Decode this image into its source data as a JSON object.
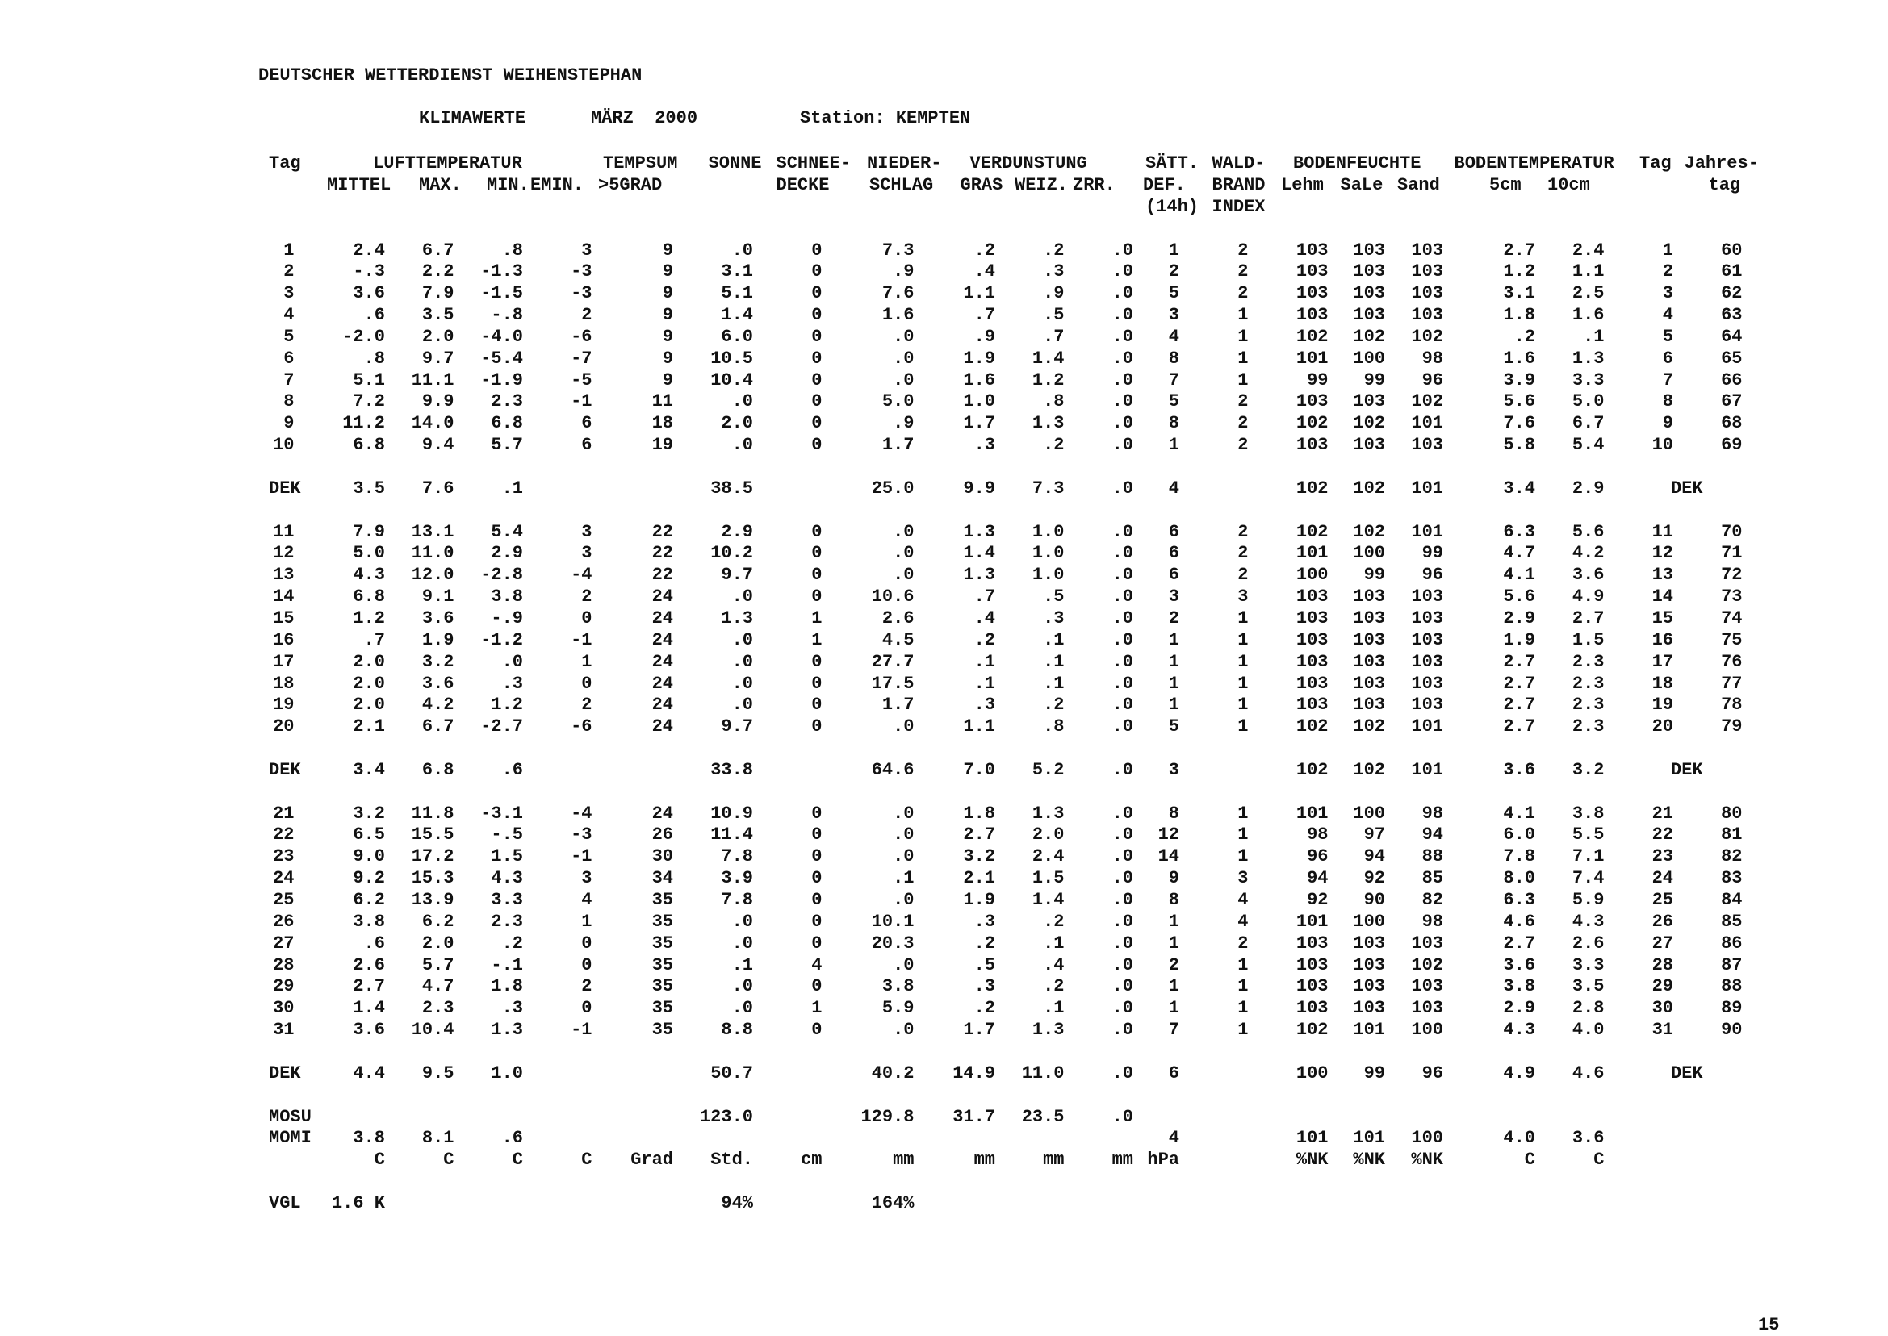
{
  "header": {
    "org": "DEUTSCHER WETTERDIENST WEIHENSTEPHAN",
    "title": "KLIMAWERTE",
    "month": "MÄRZ  2000",
    "station": "Station: KEMPTEN"
  },
  "columns": {
    "line1": [
      "Tag",
      "LUFTTEMPERATUR",
      "TEMPSUM",
      "SONNE",
      "SCHNEE-",
      "NIEDER-",
      "VERDUNSTUNG",
      "SÄTT.",
      "WALD-",
      "BODENFEUCHTE",
      "BODENTEMPERATUR",
      "Tag",
      "Jahres-"
    ],
    "line2": [
      "MITTEL",
      "MAX.",
      "MIN.",
      "EMIN.",
      ">5GRAD",
      "DECKE",
      "SCHLAG",
      "GRAS",
      "WEIZ.",
      "ZRR.",
      "DEF.",
      "BRAND",
      "Lehm",
      "SaLe",
      "Sand",
      "5cm",
      "10cm",
      "tag"
    ],
    "line3": [
      "(14h)",
      "INDEX"
    ]
  },
  "table": {
    "blocks": [
      [
        [
          "1",
          "2.4",
          "6.7",
          ".8",
          "3",
          "9",
          ".0",
          "0",
          "7.3",
          ".2",
          ".2",
          ".0",
          "1",
          "2",
          "103",
          "103",
          "103",
          "2.7",
          "2.4",
          "1",
          "60"
        ],
        [
          "2",
          "-.3",
          "2.2",
          "-1.3",
          "-3",
          "9",
          "3.1",
          "0",
          ".9",
          ".4",
          ".3",
          ".0",
          "2",
          "2",
          "103",
          "103",
          "103",
          "1.2",
          "1.1",
          "2",
          "61"
        ],
        [
          "3",
          "3.6",
          "7.9",
          "-1.5",
          "-3",
          "9",
          "5.1",
          "0",
          "7.6",
          "1.1",
          ".9",
          ".0",
          "5",
          "2",
          "103",
          "103",
          "103",
          "3.1",
          "2.5",
          "3",
          "62"
        ],
        [
          "4",
          ".6",
          "3.5",
          "-.8",
          "2",
          "9",
          "1.4",
          "0",
          "1.6",
          ".7",
          ".5",
          ".0",
          "3",
          "1",
          "103",
          "103",
          "103",
          "1.8",
          "1.6",
          "4",
          "63"
        ],
        [
          "5",
          "-2.0",
          "2.0",
          "-4.0",
          "-6",
          "9",
          "6.0",
          "0",
          ".0",
          ".9",
          ".7",
          ".0",
          "4",
          "1",
          "102",
          "102",
          "102",
          ".2",
          ".1",
          "5",
          "64"
        ],
        [
          "6",
          ".8",
          "9.7",
          "-5.4",
          "-7",
          "9",
          "10.5",
          "0",
          ".0",
          "1.9",
          "1.4",
          ".0",
          "8",
          "1",
          "101",
          "100",
          "98",
          "1.6",
          "1.3",
          "6",
          "65"
        ],
        [
          "7",
          "5.1",
          "11.1",
          "-1.9",
          "-5",
          "9",
          "10.4",
          "0",
          ".0",
          "1.6",
          "1.2",
          ".0",
          "7",
          "1",
          "99",
          "99",
          "96",
          "3.9",
          "3.3",
          "7",
          "66"
        ],
        [
          "8",
          "7.2",
          "9.9",
          "2.3",
          "-1",
          "11",
          ".0",
          "0",
          "5.0",
          "1.0",
          ".8",
          ".0",
          "5",
          "2",
          "103",
          "103",
          "102",
          "5.6",
          "5.0",
          "8",
          "67"
        ],
        [
          "9",
          "11.2",
          "14.0",
          "6.8",
          "6",
          "18",
          "2.0",
          "0",
          ".9",
          "1.7",
          "1.3",
          ".0",
          "8",
          "2",
          "102",
          "102",
          "101",
          "7.6",
          "6.7",
          "9",
          "68"
        ],
        [
          "10",
          "6.8",
          "9.4",
          "5.7",
          "6",
          "19",
          ".0",
          "0",
          "1.7",
          ".3",
          ".2",
          ".0",
          "1",
          "2",
          "103",
          "103",
          "103",
          "5.8",
          "5.4",
          "10",
          "69"
        ]
      ],
      [
        [
          "DEK",
          "3.5",
          "7.6",
          ".1",
          null,
          null,
          "38.5",
          null,
          "25.0",
          "9.9",
          "7.3",
          ".0",
          "4",
          null,
          "102",
          "102",
          "101",
          "3.4",
          "2.9",
          "DEK"
        ]
      ],
      [
        [
          "11",
          "7.9",
          "13.1",
          "5.4",
          "3",
          "22",
          "2.9",
          "0",
          ".0",
          "1.3",
          "1.0",
          ".0",
          "6",
          "2",
          "102",
          "102",
          "101",
          "6.3",
          "5.6",
          "11",
          "70"
        ],
        [
          "12",
          "5.0",
          "11.0",
          "2.9",
          "3",
          "22",
          "10.2",
          "0",
          ".0",
          "1.4",
          "1.0",
          ".0",
          "6",
          "2",
          "101",
          "100",
          "99",
          "4.7",
          "4.2",
          "12",
          "71"
        ],
        [
          "13",
          "4.3",
          "12.0",
          "-2.8",
          "-4",
          "22",
          "9.7",
          "0",
          ".0",
          "1.3",
          "1.0",
          ".0",
          "6",
          "2",
          "100",
          "99",
          "96",
          "4.1",
          "3.6",
          "13",
          "72"
        ],
        [
          "14",
          "6.8",
          "9.1",
          "3.8",
          "2",
          "24",
          ".0",
          "0",
          "10.6",
          ".7",
          ".5",
          ".0",
          "3",
          "3",
          "103",
          "103",
          "103",
          "5.6",
          "4.9",
          "14",
          "73"
        ],
        [
          "15",
          "1.2",
          "3.6",
          "-.9",
          "0",
          "24",
          "1.3",
          "1",
          "2.6",
          ".4",
          ".3",
          ".0",
          "2",
          "1",
          "103",
          "103",
          "103",
          "2.9",
          "2.7",
          "15",
          "74"
        ],
        [
          "16",
          ".7",
          "1.9",
          "-1.2",
          "-1",
          "24",
          ".0",
          "1",
          "4.5",
          ".2",
          ".1",
          ".0",
          "1",
          "1",
          "103",
          "103",
          "103",
          "1.9",
          "1.5",
          "16",
          "75"
        ],
        [
          "17",
          "2.0",
          "3.2",
          ".0",
          "1",
          "24",
          ".0",
          "0",
          "27.7",
          ".1",
          ".1",
          ".0",
          "1",
          "1",
          "103",
          "103",
          "103",
          "2.7",
          "2.3",
          "17",
          "76"
        ],
        [
          "18",
          "2.0",
          "3.6",
          ".3",
          "0",
          "24",
          ".0",
          "0",
          "17.5",
          ".1",
          ".1",
          ".0",
          "1",
          "1",
          "103",
          "103",
          "103",
          "2.7",
          "2.3",
          "18",
          "77"
        ],
        [
          "19",
          "2.0",
          "4.2",
          "1.2",
          "2",
          "24",
          ".0",
          "0",
          "1.7",
          ".3",
          ".2",
          ".0",
          "1",
          "1",
          "103",
          "103",
          "103",
          "2.7",
          "2.3",
          "19",
          "78"
        ],
        [
          "20",
          "2.1",
          "6.7",
          "-2.7",
          "-6",
          "24",
          "9.7",
          "0",
          ".0",
          "1.1",
          ".8",
          ".0",
          "5",
          "1",
          "102",
          "102",
          "101",
          "2.7",
          "2.3",
          "20",
          "79"
        ]
      ],
      [
        [
          "DEK",
          "3.4",
          "6.8",
          ".6",
          null,
          null,
          "33.8",
          null,
          "64.6",
          "7.0",
          "5.2",
          ".0",
          "3",
          null,
          "102",
          "102",
          "101",
          "3.6",
          "3.2",
          "DEK"
        ]
      ],
      [
        [
          "21",
          "3.2",
          "11.8",
          "-3.1",
          "-4",
          "24",
          "10.9",
          "0",
          ".0",
          "1.8",
          "1.3",
          ".0",
          "8",
          "1",
          "101",
          "100",
          "98",
          "4.1",
          "3.8",
          "21",
          "80"
        ],
        [
          "22",
          "6.5",
          "15.5",
          "-.5",
          "-3",
          "26",
          "11.4",
          "0",
          ".0",
          "2.7",
          "2.0",
          ".0",
          "12",
          "1",
          "98",
          "97",
          "94",
          "6.0",
          "5.5",
          "22",
          "81"
        ],
        [
          "23",
          "9.0",
          "17.2",
          "1.5",
          "-1",
          "30",
          "7.8",
          "0",
          ".0",
          "3.2",
          "2.4",
          ".0",
          "14",
          "1",
          "96",
          "94",
          "88",
          "7.8",
          "7.1",
          "23",
          "82"
        ],
        [
          "24",
          "9.2",
          "15.3",
          "4.3",
          "3",
          "34",
          "3.9",
          "0",
          ".1",
          "2.1",
          "1.5",
          ".0",
          "9",
          "3",
          "94",
          "92",
          "85",
          "8.0",
          "7.4",
          "24",
          "83"
        ],
        [
          "25",
          "6.2",
          "13.9",
          "3.3",
          "4",
          "35",
          "7.8",
          "0",
          ".0",
          "1.9",
          "1.4",
          ".0",
          "8",
          "4",
          "92",
          "90",
          "82",
          "6.3",
          "5.9",
          "25",
          "84"
        ],
        [
          "26",
          "3.8",
          "6.2",
          "2.3",
          "1",
          "35",
          ".0",
          "0",
          "10.1",
          ".3",
          ".2",
          ".0",
          "1",
          "4",
          "101",
          "100",
          "98",
          "4.6",
          "4.3",
          "26",
          "85"
        ],
        [
          "27",
          ".6",
          "2.0",
          ".2",
          "0",
          "35",
          ".0",
          "0",
          "20.3",
          ".2",
          ".1",
          ".0",
          "1",
          "2",
          "103",
          "103",
          "103",
          "2.7",
          "2.6",
          "27",
          "86"
        ],
        [
          "28",
          "2.6",
          "5.7",
          "-.1",
          "0",
          "35",
          ".1",
          "4",
          ".0",
          ".5",
          ".4",
          ".0",
          "2",
          "1",
          "103",
          "103",
          "102",
          "3.6",
          "3.3",
          "28",
          "87"
        ],
        [
          "29",
          "2.7",
          "4.7",
          "1.8",
          "2",
          "35",
          ".0",
          "0",
          "3.8",
          ".3",
          ".2",
          ".0",
          "1",
          "1",
          "103",
          "103",
          "103",
          "3.8",
          "3.5",
          "29",
          "88"
        ],
        [
          "30",
          "1.4",
          "2.3",
          ".3",
          "0",
          "35",
          ".0",
          "1",
          "5.9",
          ".2",
          ".1",
          ".0",
          "1",
          "1",
          "103",
          "103",
          "103",
          "2.9",
          "2.8",
          "30",
          "89"
        ],
        [
          "31",
          "3.6",
          "10.4",
          "1.3",
          "-1",
          "35",
          "8.8",
          "0",
          ".0",
          "1.7",
          "1.3",
          ".0",
          "7",
          "1",
          "102",
          "101",
          "100",
          "4.3",
          "4.0",
          "31",
          "90"
        ]
      ],
      [
        [
          "DEK",
          "4.4",
          "9.5",
          "1.0",
          null,
          null,
          "50.7",
          null,
          "40.2",
          "14.9",
          "11.0",
          ".0",
          "6",
          null,
          "100",
          "99",
          "96",
          "4.9",
          "4.6",
          "DEK"
        ]
      ],
      [
        [
          "MOSU",
          null,
          null,
          null,
          null,
          null,
          "123.0",
          null,
          "129.8",
          "31.7",
          "23.5",
          ".0"
        ],
        [
          "MOMI",
          "3.8",
          "8.1",
          ".6",
          null,
          null,
          null,
          null,
          null,
          null,
          null,
          null,
          "4",
          null,
          "101",
          "101",
          "100",
          "4.0",
          "3.6"
        ],
        [
          null,
          "C",
          "C",
          "C",
          "C",
          "Grad",
          "Std.",
          "cm",
          "mm",
          "mm",
          "mm",
          "mm",
          "hPa",
          null,
          "%NK",
          "%NK",
          "%NK",
          "C",
          "C"
        ]
      ],
      [
        [
          "VGL",
          "1.6 K",
          null,
          null,
          null,
          null,
          "94%",
          null,
          "164%"
        ]
      ]
    ]
  },
  "footer": {
    "page": "15"
  }
}
